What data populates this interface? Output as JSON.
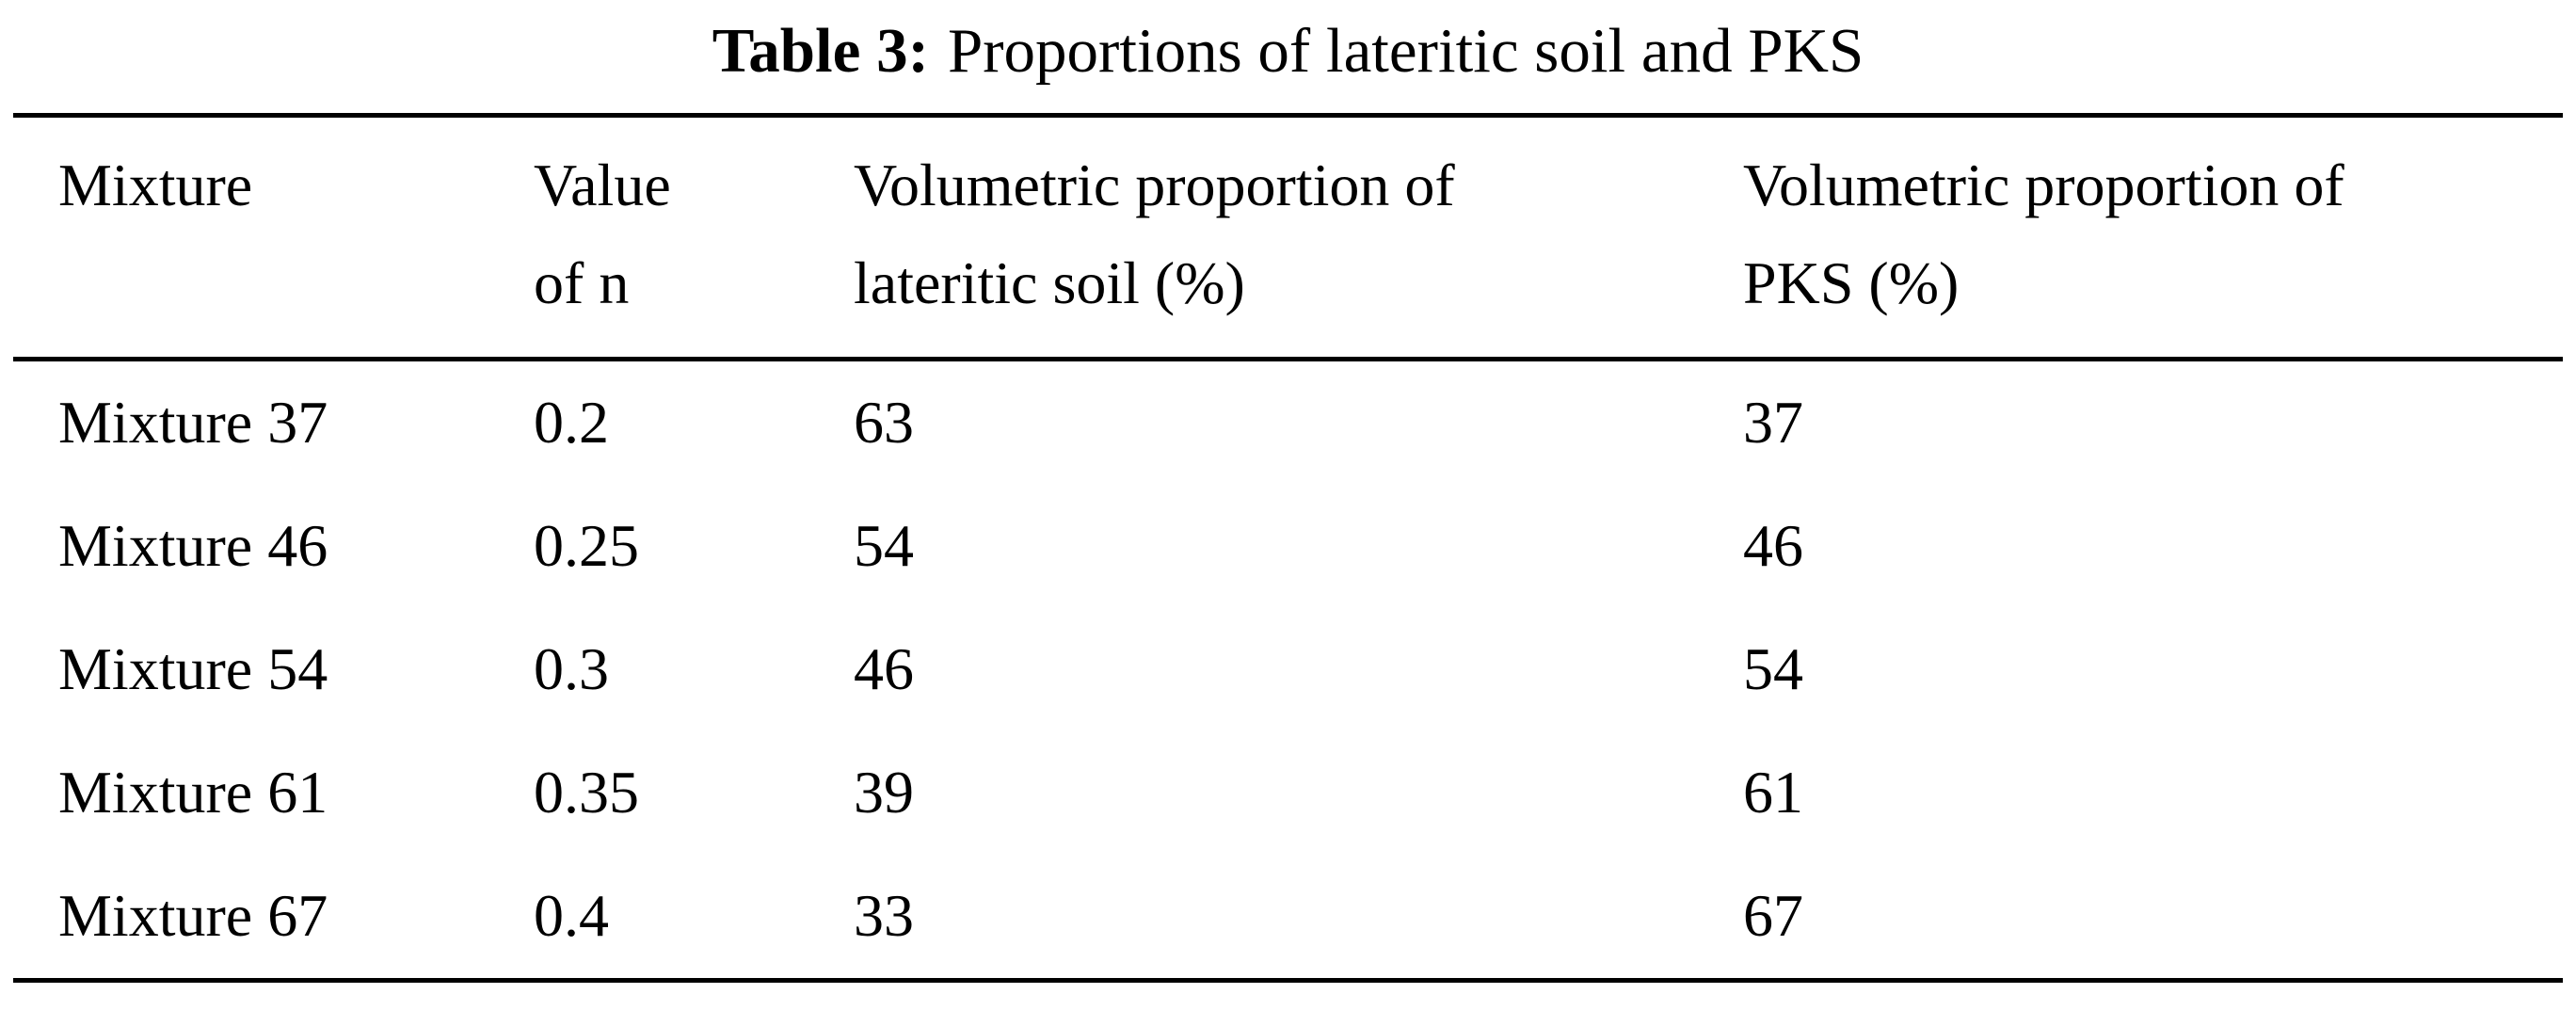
{
  "table": {
    "caption_label": "Table 3:",
    "caption_text": "Proportions of lateritic soil and PKS",
    "headers": [
      "Mixture",
      "Value of n",
      "Volumetric proportion of lateritic soil (%)",
      "Volumetric proportion of PKS (%)"
    ],
    "rows": [
      [
        "Mixture 37",
        "0.2",
        "63",
        "37"
      ],
      [
        "Mixture 46",
        "0.25",
        "54",
        "46"
      ],
      [
        "Mixture 54",
        "0.3",
        "46",
        "54"
      ],
      [
        "Mixture 61",
        "0.35",
        "39",
        "61"
      ],
      [
        "Mixture 67",
        "0.4",
        "33",
        "67"
      ]
    ]
  }
}
